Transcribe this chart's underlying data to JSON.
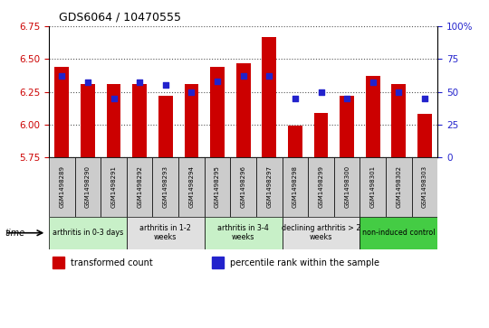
{
  "title": "GDS6064 / 10470555",
  "samples": [
    "GSM1498289",
    "GSM1498290",
    "GSM1498291",
    "GSM1498292",
    "GSM1498293",
    "GSM1498294",
    "GSM1498295",
    "GSM1498296",
    "GSM1498297",
    "GSM1498298",
    "GSM1498299",
    "GSM1498300",
    "GSM1498301",
    "GSM1498302",
    "GSM1498303"
  ],
  "transformed_count": [
    6.44,
    6.31,
    6.31,
    6.31,
    6.22,
    6.31,
    6.44,
    6.47,
    6.67,
    5.99,
    6.09,
    6.22,
    6.37,
    6.31,
    6.08
  ],
  "percentile_rank": [
    62,
    57,
    45,
    57,
    55,
    50,
    58,
    62,
    62,
    45,
    50,
    45,
    57,
    50,
    45
  ],
  "ylim_left": [
    5.75,
    6.75
  ],
  "ylim_right": [
    0,
    100
  ],
  "yticks_left": [
    5.75,
    6.0,
    6.25,
    6.5,
    6.75
  ],
  "yticks_right": [
    0,
    25,
    50,
    75,
    100
  ],
  "groups": [
    {
      "label": "arthritis in 0-3 days",
      "start": 0,
      "end": 3,
      "color": "#c8f0c8"
    },
    {
      "label": "arthritis in 1-2\nweeks",
      "start": 3,
      "end": 6,
      "color": "#e0e0e0"
    },
    {
      "label": "arthritis in 3-4\nweeks",
      "start": 6,
      "end": 9,
      "color": "#c8f0c8"
    },
    {
      "label": "declining arthritis > 2\nweeks",
      "start": 9,
      "end": 12,
      "color": "#e0e0e0"
    },
    {
      "label": "non-induced control",
      "start": 12,
      "end": 15,
      "color": "#44cc44"
    }
  ],
  "bar_color": "#cc0000",
  "dot_color": "#2222cc",
  "bar_width": 0.55,
  "grid_linestyle": ":",
  "grid_color": "#555555",
  "tick_color_left": "#cc0000",
  "tick_color_right": "#2222cc",
  "sample_box_color": "#cccccc",
  "legend_items": [
    "transformed count",
    "percentile rank within the sample"
  ],
  "legend_colors": [
    "#cc0000",
    "#2222cc"
  ]
}
